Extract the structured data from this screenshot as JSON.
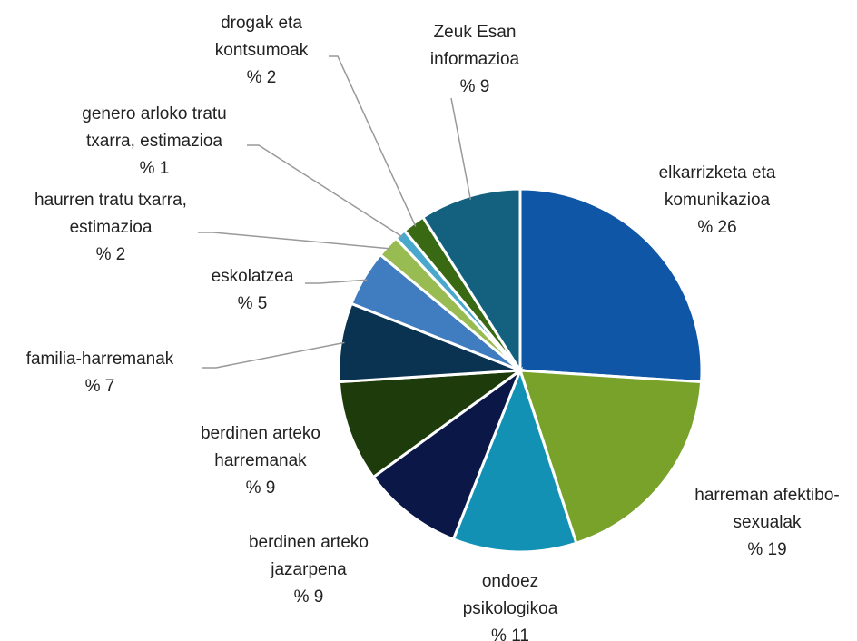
{
  "chart_data": {
    "type": "pie",
    "categories": [
      "elkarrizketa eta komunikazioa",
      "harreman afektibo-sexualak",
      "ondoez psikologikoa",
      "berdinen arteko jazarpena",
      "berdinen arteko harremanak",
      "familia-harremanak",
      "eskolatzea",
      "haurren tratu txarra, estimazioa",
      "genero arloko tratu txarra, estimazioa",
      "drogak eta kontsumoak",
      "Zeuk Esan informazioa"
    ],
    "values": [
      26,
      19,
      11,
      9,
      9,
      7,
      5,
      2,
      1,
      2,
      9
    ],
    "value_labels": [
      "% 26",
      "% 19",
      "% 11",
      "% 9",
      "% 9",
      "% 7",
      "% 5",
      "% 2",
      "% 1",
      "% 2",
      "% 9"
    ],
    "colors": [
      "#0f56a6",
      "#78a22a",
      "#1391b5",
      "#0a1747",
      "#1e3b0b",
      "#0a3251",
      "#3f7cc0",
      "#99bc52",
      "#4aa8cc",
      "#3a6913",
      "#13607f"
    ]
  }
}
